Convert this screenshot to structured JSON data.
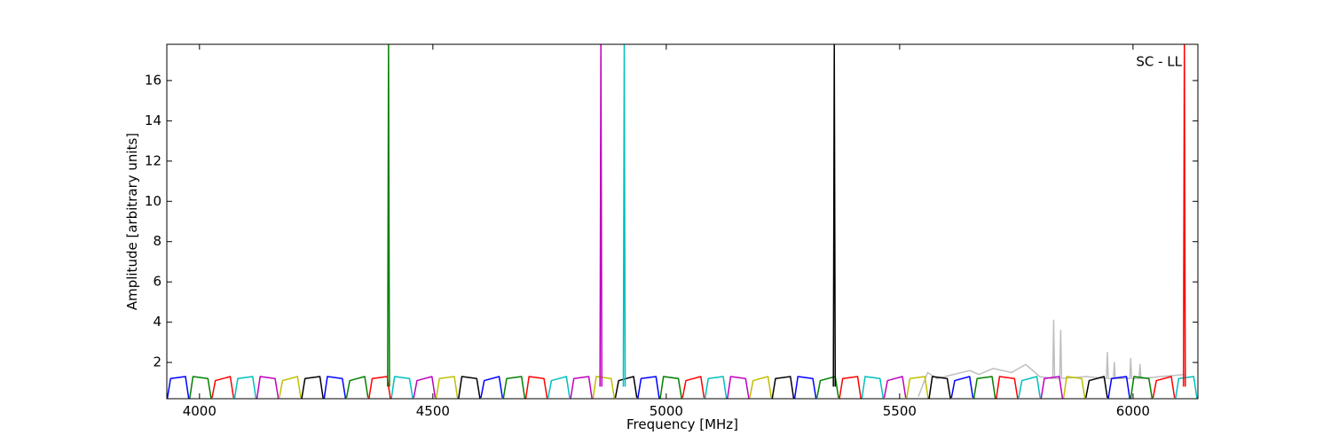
{
  "chart_data": {
    "type": "line",
    "annotation": "SC - LL",
    "xlabel": "Frequency [MHz]",
    "ylabel": "Amplitude [arbitrary units]",
    "xlim": [
      3930,
      6139
    ],
    "ylim": [
      0.2,
      17.8
    ],
    "xticks": [
      4000,
      4500,
      5000,
      5500,
      6000
    ],
    "yticks": [
      2,
      4,
      6,
      8,
      10,
      12,
      14,
      16
    ],
    "series": [
      {
        "color": "#bfbfbf",
        "x": [
          5540,
          5560,
          5580,
          5650,
          5670,
          5700,
          5740,
          5770,
          5800,
          5828,
          5830,
          5832,
          5843,
          5845,
          5847,
          5900,
          5943,
          5945,
          5947,
          5958,
          5960,
          5962,
          5993,
          5995,
          5997,
          6013,
          6015,
          6017,
          6060,
          6110
        ],
        "values": [
          0.3,
          1.5,
          1.2,
          1.6,
          1.4,
          1.7,
          1.5,
          1.9,
          1.3,
          1.2,
          4.1,
          1.2,
          1.2,
          3.6,
          1.2,
          1.3,
          1.2,
          2.5,
          1.2,
          1.2,
          2.0,
          1.2,
          1.2,
          2.2,
          1.2,
          1.2,
          1.9,
          1.2,
          1.3,
          1.4
        ]
      },
      {
        "color": "#0000ff",
        "x": [
          3931,
          3938,
          3970,
          3977
        ],
        "values": [
          0.2,
          1.2,
          1.3,
          0.2
        ]
      },
      {
        "color": "#008000",
        "x": [
          3979,
          3986,
          4018,
          4025
        ],
        "values": [
          0.2,
          1.3,
          1.2,
          0.2
        ]
      },
      {
        "color": "#ff0000",
        "x": [
          4027,
          4034,
          4066,
          4073
        ],
        "values": [
          0.25,
          1.1,
          1.3,
          0.25
        ]
      },
      {
        "color": "#00bfbf",
        "x": [
          4075,
          4082,
          4114,
          4121
        ],
        "values": [
          0.2,
          1.2,
          1.3,
          0.2
        ]
      },
      {
        "color": "#bf00bf",
        "x": [
          4123,
          4130,
          4162,
          4169
        ],
        "values": [
          0.2,
          1.3,
          1.2,
          0.2
        ]
      },
      {
        "color": "#bfbf00",
        "x": [
          4171,
          4178,
          4210,
          4217
        ],
        "values": [
          0.25,
          1.1,
          1.3,
          0.25
        ]
      },
      {
        "color": "#000000",
        "x": [
          4219,
          4226,
          4258,
          4265
        ],
        "values": [
          0.2,
          1.2,
          1.3,
          0.2
        ]
      },
      {
        "color": "#0000ff",
        "x": [
          4267,
          4274,
          4306,
          4313
        ],
        "values": [
          0.2,
          1.3,
          1.2,
          0.2
        ]
      },
      {
        "color": "#008000",
        "x": [
          4315,
          4322,
          4354,
          4361
        ],
        "values": [
          0.25,
          1.1,
          1.3,
          0.25
        ]
      },
      {
        "color": "#ff0000",
        "x": [
          4363,
          4370,
          4402,
          4409
        ],
        "values": [
          0.2,
          1.2,
          1.3,
          0.2
        ]
      },
      {
        "color": "#00bfbf",
        "x": [
          4411,
          4418,
          4450,
          4457
        ],
        "values": [
          0.2,
          1.3,
          1.2,
          0.2
        ]
      },
      {
        "color": "#bf00bf",
        "x": [
          4459,
          4466,
          4498,
          4505
        ],
        "values": [
          0.25,
          1.1,
          1.3,
          0.25
        ]
      },
      {
        "color": "#bfbf00",
        "x": [
          4507,
          4514,
          4546,
          4553
        ],
        "values": [
          0.2,
          1.2,
          1.3,
          0.2
        ]
      },
      {
        "color": "#000000",
        "x": [
          4555,
          4562,
          4594,
          4601
        ],
        "values": [
          0.2,
          1.3,
          1.2,
          0.2
        ]
      },
      {
        "color": "#0000ff",
        "x": [
          4603,
          4610,
          4642,
          4649
        ],
        "values": [
          0.25,
          1.1,
          1.3,
          0.25
        ]
      },
      {
        "color": "#008000",
        "x": [
          4651,
          4658,
          4690,
          4697
        ],
        "values": [
          0.2,
          1.2,
          1.3,
          0.2
        ]
      },
      {
        "color": "#ff0000",
        "x": [
          4699,
          4706,
          4738,
          4745
        ],
        "values": [
          0.2,
          1.3,
          1.2,
          0.2
        ]
      },
      {
        "color": "#00bfbf",
        "x": [
          4747,
          4754,
          4786,
          4793
        ],
        "values": [
          0.25,
          1.1,
          1.3,
          0.25
        ]
      },
      {
        "color": "#bf00bf",
        "x": [
          4795,
          4802,
          4834,
          4841
        ],
        "values": [
          0.2,
          1.2,
          1.3,
          0.2
        ]
      },
      {
        "color": "#bfbf00",
        "x": [
          4843,
          4850,
          4882,
          4889
        ],
        "values": [
          0.2,
          1.3,
          1.2,
          0.2
        ]
      },
      {
        "color": "#000000",
        "x": [
          4891,
          4898,
          4930,
          4937
        ],
        "values": [
          0.25,
          1.1,
          1.3,
          0.25
        ]
      },
      {
        "color": "#0000ff",
        "x": [
          4939,
          4946,
          4978,
          4985
        ],
        "values": [
          0.2,
          1.2,
          1.3,
          0.2
        ]
      },
      {
        "color": "#008000",
        "x": [
          4987,
          4994,
          5026,
          5033
        ],
        "values": [
          0.2,
          1.3,
          1.2,
          0.2
        ]
      },
      {
        "color": "#ff0000",
        "x": [
          5035,
          5042,
          5074,
          5081
        ],
        "values": [
          0.25,
          1.1,
          1.3,
          0.25
        ]
      },
      {
        "color": "#00bfbf",
        "x": [
          5083,
          5090,
          5122,
          5129
        ],
        "values": [
          0.2,
          1.2,
          1.3,
          0.2
        ]
      },
      {
        "color": "#bf00bf",
        "x": [
          5131,
          5138,
          5170,
          5177
        ],
        "values": [
          0.2,
          1.3,
          1.2,
          0.2
        ]
      },
      {
        "color": "#bfbf00",
        "x": [
          5179,
          5186,
          5218,
          5225
        ],
        "values": [
          0.25,
          1.1,
          1.3,
          0.25
        ]
      },
      {
        "color": "#000000",
        "x": [
          5227,
          5234,
          5266,
          5273
        ],
        "values": [
          0.2,
          1.2,
          1.3,
          0.2
        ]
      },
      {
        "color": "#0000ff",
        "x": [
          5275,
          5282,
          5314,
          5321
        ],
        "values": [
          0.2,
          1.3,
          1.2,
          0.2
        ]
      },
      {
        "color": "#008000",
        "x": [
          5323,
          5330,
          5362,
          5369
        ],
        "values": [
          0.25,
          1.1,
          1.3,
          0.25
        ]
      },
      {
        "color": "#ff0000",
        "x": [
          5371,
          5378,
          5410,
          5417
        ],
        "values": [
          0.2,
          1.2,
          1.3,
          0.2
        ]
      },
      {
        "color": "#00bfbf",
        "x": [
          5419,
          5426,
          5458,
          5465
        ],
        "values": [
          0.2,
          1.3,
          1.2,
          0.2
        ]
      },
      {
        "color": "#bf00bf",
        "x": [
          5467,
          5474,
          5506,
          5513
        ],
        "values": [
          0.25,
          1.1,
          1.3,
          0.25
        ]
      },
      {
        "color": "#bfbf00",
        "x": [
          5515,
          5522,
          5554,
          5561
        ],
        "values": [
          0.2,
          1.2,
          1.3,
          0.2
        ]
      },
      {
        "color": "#000000",
        "x": [
          5563,
          5570,
          5602,
          5609
        ],
        "values": [
          0.2,
          1.3,
          1.2,
          0.2
        ]
      },
      {
        "color": "#0000ff",
        "x": [
          5611,
          5618,
          5650,
          5657
        ],
        "values": [
          0.25,
          1.1,
          1.3,
          0.25
        ]
      },
      {
        "color": "#008000",
        "x": [
          5659,
          5666,
          5698,
          5705
        ],
        "values": [
          0.2,
          1.2,
          1.3,
          0.2
        ]
      },
      {
        "color": "#ff0000",
        "x": [
          5707,
          5714,
          5746,
          5753
        ],
        "values": [
          0.2,
          1.3,
          1.2,
          0.2
        ]
      },
      {
        "color": "#00bfbf",
        "x": [
          5755,
          5762,
          5794,
          5801
        ],
        "values": [
          0.25,
          1.1,
          1.3,
          0.25
        ]
      },
      {
        "color": "#bf00bf",
        "x": [
          5803,
          5810,
          5842,
          5849
        ],
        "values": [
          0.2,
          1.2,
          1.3,
          0.2
        ]
      },
      {
        "color": "#bfbf00",
        "x": [
          5851,
          5858,
          5890,
          5897
        ],
        "values": [
          0.2,
          1.3,
          1.2,
          0.2
        ]
      },
      {
        "color": "#000000",
        "x": [
          5899,
          5906,
          5938,
          5945
        ],
        "values": [
          0.25,
          1.1,
          1.3,
          0.25
        ]
      },
      {
        "color": "#0000ff",
        "x": [
          5947,
          5954,
          5986,
          5993
        ],
        "values": [
          0.2,
          1.2,
          1.3,
          0.2
        ]
      },
      {
        "color": "#008000",
        "x": [
          5995,
          6002,
          6034,
          6041
        ],
        "values": [
          0.2,
          1.3,
          1.2,
          0.2
        ]
      },
      {
        "color": "#ff0000",
        "x": [
          6043,
          6050,
          6082,
          6089
        ],
        "values": [
          0.25,
          1.1,
          1.3,
          0.25
        ]
      },
      {
        "color": "#00bfbf",
        "x": [
          6091,
          6098,
          6130,
          6137
        ],
        "values": [
          0.2,
          1.2,
          1.3,
          0.2
        ]
      },
      {
        "color": "#008000",
        "x": [
          4403,
          4405,
          4407
        ],
        "values": [
          0.8,
          17.8,
          0.8
        ]
      },
      {
        "color": "#bf00bf",
        "x": [
          4858,
          4860,
          4862
        ],
        "values": [
          0.8,
          17.8,
          0.8
        ]
      },
      {
        "color": "#00bfbf",
        "x": [
          4908,
          4910,
          4912
        ],
        "values": [
          0.8,
          17.8,
          0.8
        ]
      },
      {
        "color": "#000000",
        "x": [
          5358,
          5360,
          5362
        ],
        "values": [
          0.8,
          17.8,
          0.8
        ]
      },
      {
        "color": "#ff0000",
        "x": [
          6108,
          6110,
          6112
        ],
        "values": [
          0.8,
          17.8,
          0.8
        ]
      }
    ]
  }
}
